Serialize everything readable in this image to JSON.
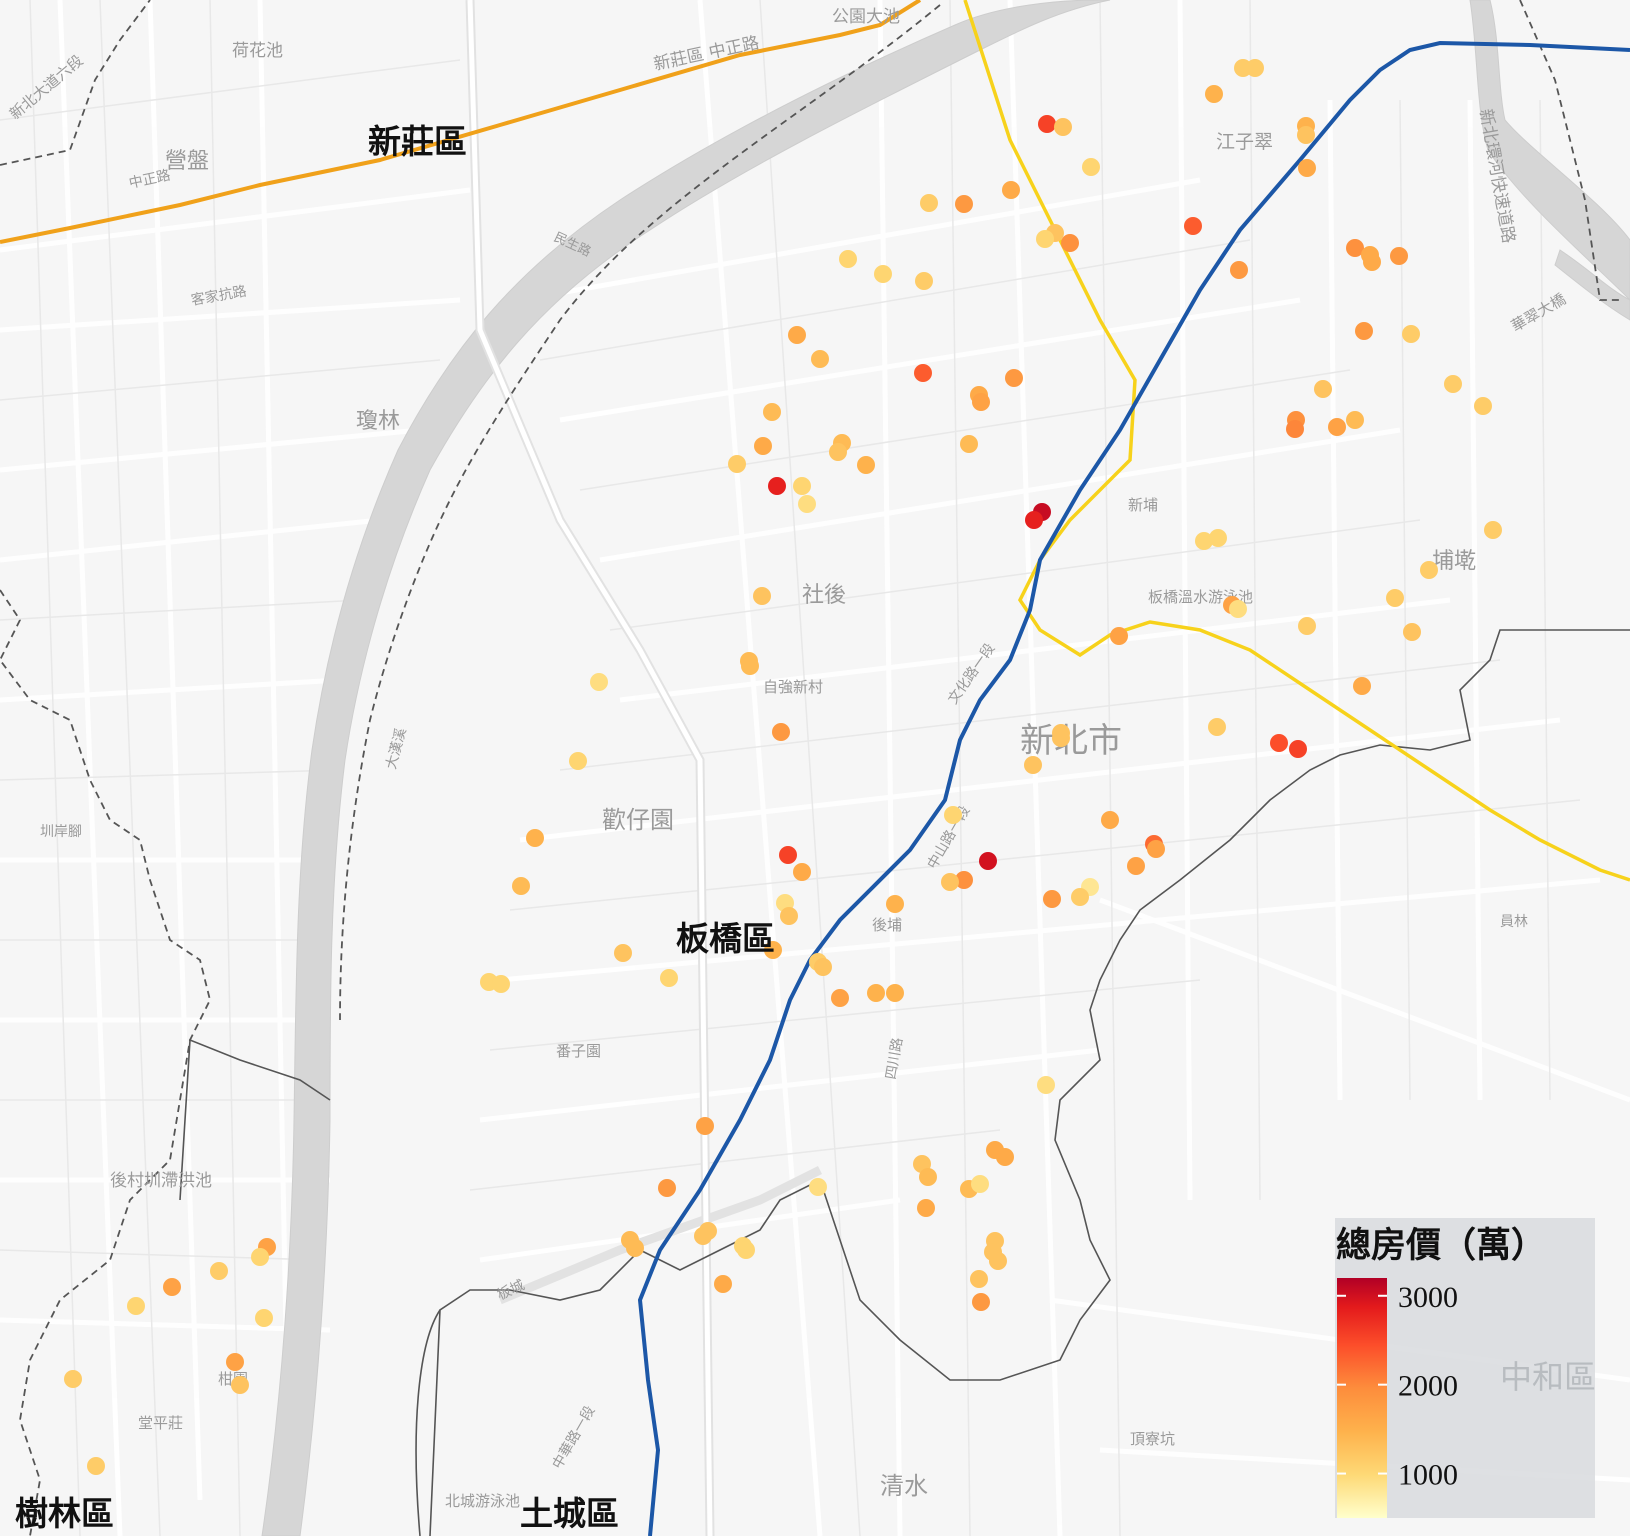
{
  "map": {
    "district_labels": [
      {
        "name": "新莊區"
      },
      {
        "name": "板橋區"
      },
      {
        "name": "樹林區"
      },
      {
        "name": "土城區"
      },
      {
        "name": "中和區"
      }
    ],
    "place_labels": [
      {
        "name": "荷花池"
      },
      {
        "name": "公園大池"
      },
      {
        "name": "新北大道六段"
      },
      {
        "name": "新莊區 中正路"
      },
      {
        "name": "營盤"
      },
      {
        "name": "中正路"
      },
      {
        "name": "瓊林"
      },
      {
        "name": "客家抗路"
      },
      {
        "name": "江子翠"
      },
      {
        "name": "新埔"
      },
      {
        "name": "埔墘"
      },
      {
        "name": "社後"
      },
      {
        "name": "自強新村"
      },
      {
        "name": "新北市"
      },
      {
        "name": "歡仔園"
      },
      {
        "name": "板橋溫水游泳池"
      },
      {
        "name": "後埔"
      },
      {
        "name": "番子園"
      },
      {
        "name": "後村圳滯洪池"
      },
      {
        "name": "圳岸腳"
      },
      {
        "name": "柑園"
      },
      {
        "name": "大漢溪"
      },
      {
        "name": "清水"
      },
      {
        "name": "頂寮坑"
      },
      {
        "name": "北城游泳池"
      },
      {
        "name": "堂平莊"
      },
      {
        "name": "新北環河快速道路"
      },
      {
        "name": "華翠大橋"
      },
      {
        "name": "文化路一段"
      },
      {
        "name": "中山路一段"
      },
      {
        "name": "四川路"
      },
      {
        "name": "中華路一段"
      },
      {
        "name": "民生路"
      },
      {
        "name": "員林"
      },
      {
        "name": "板城"
      }
    ]
  },
  "legend": {
    "title": "總房價（萬）",
    "ticks": [
      "3000",
      "2000",
      "1000"
    ],
    "min": 500,
    "max": 3200,
    "colors": [
      "#ffffcc",
      "#fed976",
      "#feb24c",
      "#fd8d3c",
      "#fc4e2a",
      "#e31a1c",
      "#b10026"
    ]
  },
  "points": [
    {
      "lon": 1047,
      "lat": 124,
      "v": 2400
    },
    {
      "lon": 1063,
      "lat": 127,
      "v": 1200
    },
    {
      "lon": 1243,
      "lat": 68,
      "v": 1100
    },
    {
      "lon": 1255,
      "lat": 68,
      "v": 1100
    },
    {
      "lon": 1214,
      "lat": 94,
      "v": 1400
    },
    {
      "lon": 1091,
      "lat": 167,
      "v": 1000
    },
    {
      "lon": 1306,
      "lat": 126,
      "v": 1400
    },
    {
      "lon": 1306,
      "lat": 135,
      "v": 1200
    },
    {
      "lon": 1307,
      "lat": 168,
      "v": 1500
    },
    {
      "lon": 1011,
      "lat": 190,
      "v": 1500
    },
    {
      "lon": 964,
      "lat": 204,
      "v": 1700
    },
    {
      "lon": 929,
      "lat": 203,
      "v": 1100
    },
    {
      "lon": 1193,
      "lat": 226,
      "v": 2200
    },
    {
      "lon": 1055,
      "lat": 233,
      "v": 1200
    },
    {
      "lon": 1045,
      "lat": 239,
      "v": 1000
    },
    {
      "lon": 1070,
      "lat": 243,
      "v": 1800
    },
    {
      "lon": 1355,
      "lat": 248,
      "v": 1800
    },
    {
      "lon": 1370,
      "lat": 255,
      "v": 1500
    },
    {
      "lon": 1372,
      "lat": 262,
      "v": 1500
    },
    {
      "lon": 1399,
      "lat": 256,
      "v": 1700
    },
    {
      "lon": 1239,
      "lat": 270,
      "v": 1700
    },
    {
      "lon": 848,
      "lat": 259,
      "v": 1000
    },
    {
      "lon": 883,
      "lat": 274,
      "v": 1000
    },
    {
      "lon": 924,
      "lat": 281,
      "v": 1100
    },
    {
      "lon": 797,
      "lat": 335,
      "v": 1500
    },
    {
      "lon": 820,
      "lat": 359,
      "v": 1300
    },
    {
      "lon": 923,
      "lat": 373,
      "v": 2200
    },
    {
      "lon": 1014,
      "lat": 378,
      "v": 1700
    },
    {
      "lon": 979,
      "lat": 395,
      "v": 1500
    },
    {
      "lon": 981,
      "lat": 402,
      "v": 1600
    },
    {
      "lon": 1364,
      "lat": 331,
      "v": 1700
    },
    {
      "lon": 1411,
      "lat": 334,
      "v": 1100
    },
    {
      "lon": 1323,
      "lat": 389,
      "v": 1200
    },
    {
      "lon": 1453,
      "lat": 384,
      "v": 1100
    },
    {
      "lon": 1483,
      "lat": 406,
      "v": 1100
    },
    {
      "lon": 1296,
      "lat": 420,
      "v": 1800
    },
    {
      "lon": 1295,
      "lat": 429,
      "v": 1900
    },
    {
      "lon": 1337,
      "lat": 427,
      "v": 1600
    },
    {
      "lon": 1355,
      "lat": 420,
      "v": 1300
    },
    {
      "lon": 772,
      "lat": 412,
      "v": 1300
    },
    {
      "lon": 763,
      "lat": 446,
      "v": 1500
    },
    {
      "lon": 842,
      "lat": 443,
      "v": 1300
    },
    {
      "lon": 838,
      "lat": 452,
      "v": 1200
    },
    {
      "lon": 866,
      "lat": 465,
      "v": 1400
    },
    {
      "lon": 969,
      "lat": 444,
      "v": 1300
    },
    {
      "lon": 737,
      "lat": 464,
      "v": 1100
    },
    {
      "lon": 777,
      "lat": 486,
      "v": 2700
    },
    {
      "lon": 802,
      "lat": 486,
      "v": 1000
    },
    {
      "lon": 807,
      "lat": 504,
      "v": 900
    },
    {
      "lon": 1042,
      "lat": 512,
      "v": 3000
    },
    {
      "lon": 1034,
      "lat": 520,
      "v": 2700
    },
    {
      "lon": 1204,
      "lat": 541,
      "v": 1000
    },
    {
      "lon": 1218,
      "lat": 538,
      "v": 1000
    },
    {
      "lon": 1493,
      "lat": 530,
      "v": 1100
    },
    {
      "lon": 1429,
      "lat": 570,
      "v": 1100
    },
    {
      "lon": 762,
      "lat": 596,
      "v": 1200
    },
    {
      "lon": 1395,
      "lat": 598,
      "v": 1100
    },
    {
      "lon": 1232,
      "lat": 605,
      "v": 1600
    },
    {
      "lon": 1238,
      "lat": 609,
      "v": 900
    },
    {
      "lon": 1307,
      "lat": 626,
      "v": 1100
    },
    {
      "lon": 1412,
      "lat": 632,
      "v": 1200
    },
    {
      "lon": 1119,
      "lat": 636,
      "v": 1600
    },
    {
      "lon": 749,
      "lat": 661,
      "v": 1300
    },
    {
      "lon": 750,
      "lat": 666,
      "v": 1300
    },
    {
      "lon": 599,
      "lat": 682,
      "v": 900
    },
    {
      "lon": 1362,
      "lat": 686,
      "v": 1500
    },
    {
      "lon": 781,
      "lat": 732,
      "v": 1700
    },
    {
      "lon": 1217,
      "lat": 727,
      "v": 1100
    },
    {
      "lon": 1061,
      "lat": 733,
      "v": 1200
    },
    {
      "lon": 1061,
      "lat": 738,
      "v": 1200
    },
    {
      "lon": 1279,
      "lat": 743,
      "v": 2300
    },
    {
      "lon": 1298,
      "lat": 749,
      "v": 2400
    },
    {
      "lon": 1033,
      "lat": 765,
      "v": 1200
    },
    {
      "lon": 578,
      "lat": 761,
      "v": 1000
    },
    {
      "lon": 953,
      "lat": 815,
      "v": 1000
    },
    {
      "lon": 1110,
      "lat": 820,
      "v": 1500
    },
    {
      "lon": 535,
      "lat": 838,
      "v": 1400
    },
    {
      "lon": 1154,
      "lat": 844,
      "v": 2100
    },
    {
      "lon": 1156,
      "lat": 849,
      "v": 1600
    },
    {
      "lon": 1136,
      "lat": 866,
      "v": 1600
    },
    {
      "lon": 788,
      "lat": 855,
      "v": 2400
    },
    {
      "lon": 802,
      "lat": 872,
      "v": 1500
    },
    {
      "lon": 988,
      "lat": 861,
      "v": 2900
    },
    {
      "lon": 964,
      "lat": 880,
      "v": 1800
    },
    {
      "lon": 950,
      "lat": 882,
      "v": 1200
    },
    {
      "lon": 521,
      "lat": 886,
      "v": 1300
    },
    {
      "lon": 1090,
      "lat": 887,
      "v": 800
    },
    {
      "lon": 1080,
      "lat": 897,
      "v": 1100
    },
    {
      "lon": 1052,
      "lat": 899,
      "v": 1700
    },
    {
      "lon": 895,
      "lat": 904,
      "v": 1400
    },
    {
      "lon": 785,
      "lat": 903,
      "v": 900
    },
    {
      "lon": 789,
      "lat": 916,
      "v": 1200
    },
    {
      "lon": 773,
      "lat": 950,
      "v": 1400
    },
    {
      "lon": 623,
      "lat": 953,
      "v": 1200
    },
    {
      "lon": 818,
      "lat": 962,
      "v": 1100
    },
    {
      "lon": 823,
      "lat": 967,
      "v": 1200
    },
    {
      "lon": 669,
      "lat": 978,
      "v": 1000
    },
    {
      "lon": 489,
      "lat": 982,
      "v": 1000
    },
    {
      "lon": 501,
      "lat": 984,
      "v": 1000
    },
    {
      "lon": 840,
      "lat": 998,
      "v": 1600
    },
    {
      "lon": 876,
      "lat": 993,
      "v": 1400
    },
    {
      "lon": 895,
      "lat": 993,
      "v": 1400
    },
    {
      "lon": 1046,
      "lat": 1085,
      "v": 900
    },
    {
      "lon": 705,
      "lat": 1126,
      "v": 1600
    },
    {
      "lon": 995,
      "lat": 1150,
      "v": 1500
    },
    {
      "lon": 1005,
      "lat": 1157,
      "v": 1500
    },
    {
      "lon": 922,
      "lat": 1164,
      "v": 1200
    },
    {
      "lon": 928,
      "lat": 1177,
      "v": 1300
    },
    {
      "lon": 818,
      "lat": 1187,
      "v": 900
    },
    {
      "lon": 969,
      "lat": 1189,
      "v": 1300
    },
    {
      "lon": 980,
      "lat": 1184,
      "v": 900
    },
    {
      "lon": 667,
      "lat": 1188,
      "v": 1700
    },
    {
      "lon": 926,
      "lat": 1208,
      "v": 1500
    },
    {
      "lon": 708,
      "lat": 1231,
      "v": 1200
    },
    {
      "lon": 703,
      "lat": 1236,
      "v": 1200
    },
    {
      "lon": 630,
      "lat": 1240,
      "v": 1300
    },
    {
      "lon": 635,
      "lat": 1248,
      "v": 1300
    },
    {
      "lon": 743,
      "lat": 1246,
      "v": 1000
    },
    {
      "lon": 746,
      "lat": 1250,
      "v": 1000
    },
    {
      "lon": 995,
      "lat": 1241,
      "v": 1200
    },
    {
      "lon": 993,
      "lat": 1252,
      "v": 1200
    },
    {
      "lon": 998,
      "lat": 1261,
      "v": 1200
    },
    {
      "lon": 979,
      "lat": 1279,
      "v": 1200
    },
    {
      "lon": 723,
      "lat": 1284,
      "v": 1500
    },
    {
      "lon": 981,
      "lat": 1302,
      "v": 1700
    },
    {
      "lon": 267,
      "lat": 1247,
      "v": 1600
    },
    {
      "lon": 260,
      "lat": 1257,
      "v": 1000
    },
    {
      "lon": 219,
      "lat": 1271,
      "v": 1100
    },
    {
      "lon": 172,
      "lat": 1287,
      "v": 1600
    },
    {
      "lon": 136,
      "lat": 1306,
      "v": 1000
    },
    {
      "lon": 264,
      "lat": 1318,
      "v": 1000
    },
    {
      "lon": 235,
      "lat": 1362,
      "v": 1600
    },
    {
      "lon": 240,
      "lat": 1385,
      "v": 1200
    },
    {
      "lon": 73,
      "lat": 1379,
      "v": 1100
    },
    {
      "lon": 96,
      "lat": 1466,
      "v": 1100
    }
  ]
}
